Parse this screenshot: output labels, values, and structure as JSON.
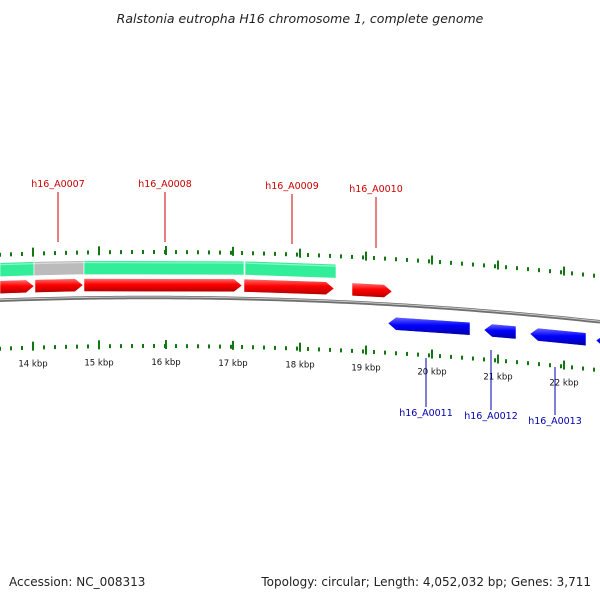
{
  "title": "Ralstonia eutropha H16 chromosome 1, complete genome",
  "footer": {
    "accession": "Accession: NC_008313",
    "summary": "Topology: circular; Length: 4,052,032 bp; Genes: 3,711"
  },
  "colors": {
    "forward_gene": "#ff0000",
    "reverse_gene": "#0000ff",
    "forward_label": "#cc0000",
    "reverse_label": "#0000aa",
    "cds_track": "#33ee99",
    "gap_track": "#bbbbbb",
    "backbone": "#888888",
    "ticks": "#117711"
  },
  "axis": {
    "ticks": [
      {
        "label": "14 kbp"
      },
      {
        "label": "15 kbp"
      },
      {
        "label": "16 kbp"
      },
      {
        "label": "17 kbp"
      },
      {
        "label": "18 kbp"
      },
      {
        "label": "19 kbp"
      },
      {
        "label": "20 kbp"
      },
      {
        "label": "21 kbp"
      },
      {
        "label": "22 kbp"
      }
    ]
  },
  "genes_forward": [
    {
      "label": "h16_A0007"
    },
    {
      "label": "h16_A0008"
    },
    {
      "label": "h16_A0009"
    },
    {
      "label": "h16_A0010"
    }
  ],
  "genes_reverse": [
    {
      "label": "h16_A0011"
    },
    {
      "label": "h16_A0012"
    },
    {
      "label": "h16_A0013"
    }
  ]
}
